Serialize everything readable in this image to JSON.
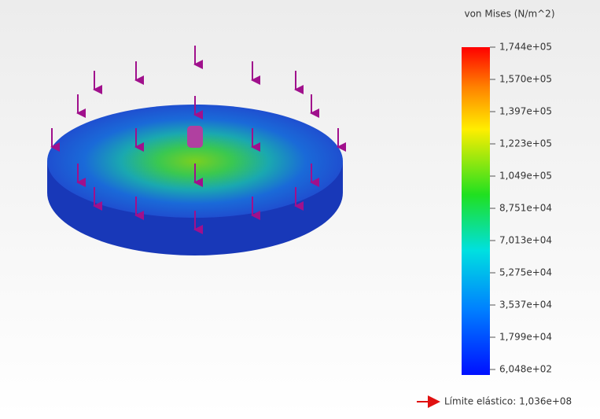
{
  "legend": {
    "title": "von Mises (N/m^2)",
    "ticks": [
      "1,744e+05",
      "1,570e+05",
      "1,397e+05",
      "1,223e+05",
      "1,049e+05",
      "8,751e+04",
      "7,013e+04",
      "5,275e+04",
      "3,537e+04",
      "1,799e+04",
      "6,048e+02"
    ]
  },
  "yield_limit": "Límite elástico: 1,036e+08"
}
